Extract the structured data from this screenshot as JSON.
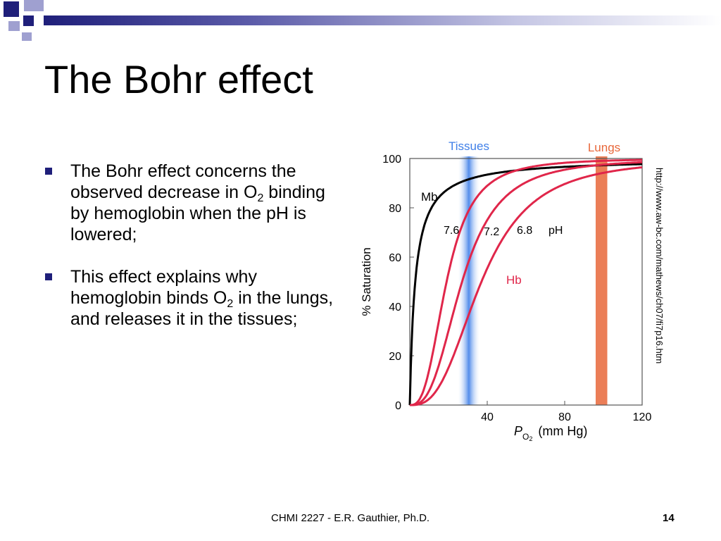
{
  "slide": {
    "title": "The Bohr effect",
    "bullets": [
      {
        "pre": "The Bohr effect concerns the observed decrease in O",
        "sub": "2",
        "post": " binding by hemoglobin when the pH is lowered;"
      },
      {
        "pre": "This effect explains why hemoglobin binds O",
        "sub": "2",
        "post": " in the lungs, and releases it in the tissues;"
      }
    ],
    "source_url": "http://www.aw-bc.com/mathews/ch07/fi7p16.htm",
    "footer": "CHMI 2227 - E.R. Gauthier, Ph.D.",
    "page_number": "14"
  },
  "colors": {
    "accent": "#1f1f7a",
    "deco_light": "#9fa0d0",
    "tissues": "#3f7fe8",
    "lungs": "#e8673a",
    "hb_curve": "#e0264a",
    "mb_curve": "#000000"
  },
  "chart_data": {
    "type": "line",
    "xlabel_main": "P",
    "xlabel_sub": "O",
    "xlabel_sub2": "2",
    "xlabel_units": "(mm Hg)",
    "ylabel": "% Saturation",
    "xlim": [
      0,
      120
    ],
    "ylim": [
      0,
      100
    ],
    "xticks": [
      40,
      80,
      120
    ],
    "yticks": [
      0,
      20,
      40,
      60,
      80,
      100
    ],
    "bands": [
      {
        "name": "Tissues",
        "x_range": [
          25,
          36
        ],
        "color": "#3f7fe8"
      },
      {
        "name": "Lungs",
        "x_range": [
          96,
          102
        ],
        "color": "#e8673a"
      }
    ],
    "series": [
      {
        "name": "Mb",
        "p50": 2.8,
        "n": 1.0,
        "color": "#000000",
        "x": [
          0,
          2,
          5,
          10,
          20,
          30,
          40,
          60,
          80,
          100,
          120
        ],
        "y": [
          0,
          42,
          64,
          78,
          88,
          91,
          93,
          96,
          97,
          98,
          99
        ]
      },
      {
        "name": "7.6",
        "p50": 19,
        "n": 2.8,
        "color": "#e0264a",
        "x": [
          0,
          5,
          10,
          15,
          20,
          25,
          30,
          40,
          60,
          80,
          100,
          120
        ],
        "y": [
          0,
          3,
          14,
          35,
          55,
          68,
          77,
          87,
          94,
          97,
          98,
          99
        ]
      },
      {
        "name": "7.2",
        "p50": 27,
        "n": 2.8,
        "color": "#e0264a",
        "x": [
          0,
          10,
          20,
          25,
          30,
          40,
          50,
          60,
          80,
          100,
          120
        ],
        "y": [
          0,
          7,
          30,
          43,
          55,
          73,
          83,
          89,
          95,
          97,
          98
        ]
      },
      {
        "name": "6.8",
        "p50": 37,
        "n": 2.8,
        "color": "#e0264a",
        "x": [
          0,
          10,
          20,
          30,
          40,
          50,
          60,
          80,
          100,
          120
        ],
        "y": [
          0,
          3,
          15,
          35,
          55,
          70,
          80,
          91,
          95,
          97
        ]
      }
    ],
    "annotations": {
      "mb_label": "Mb",
      "ph_label": "pH",
      "hb_label": "Hb"
    }
  }
}
